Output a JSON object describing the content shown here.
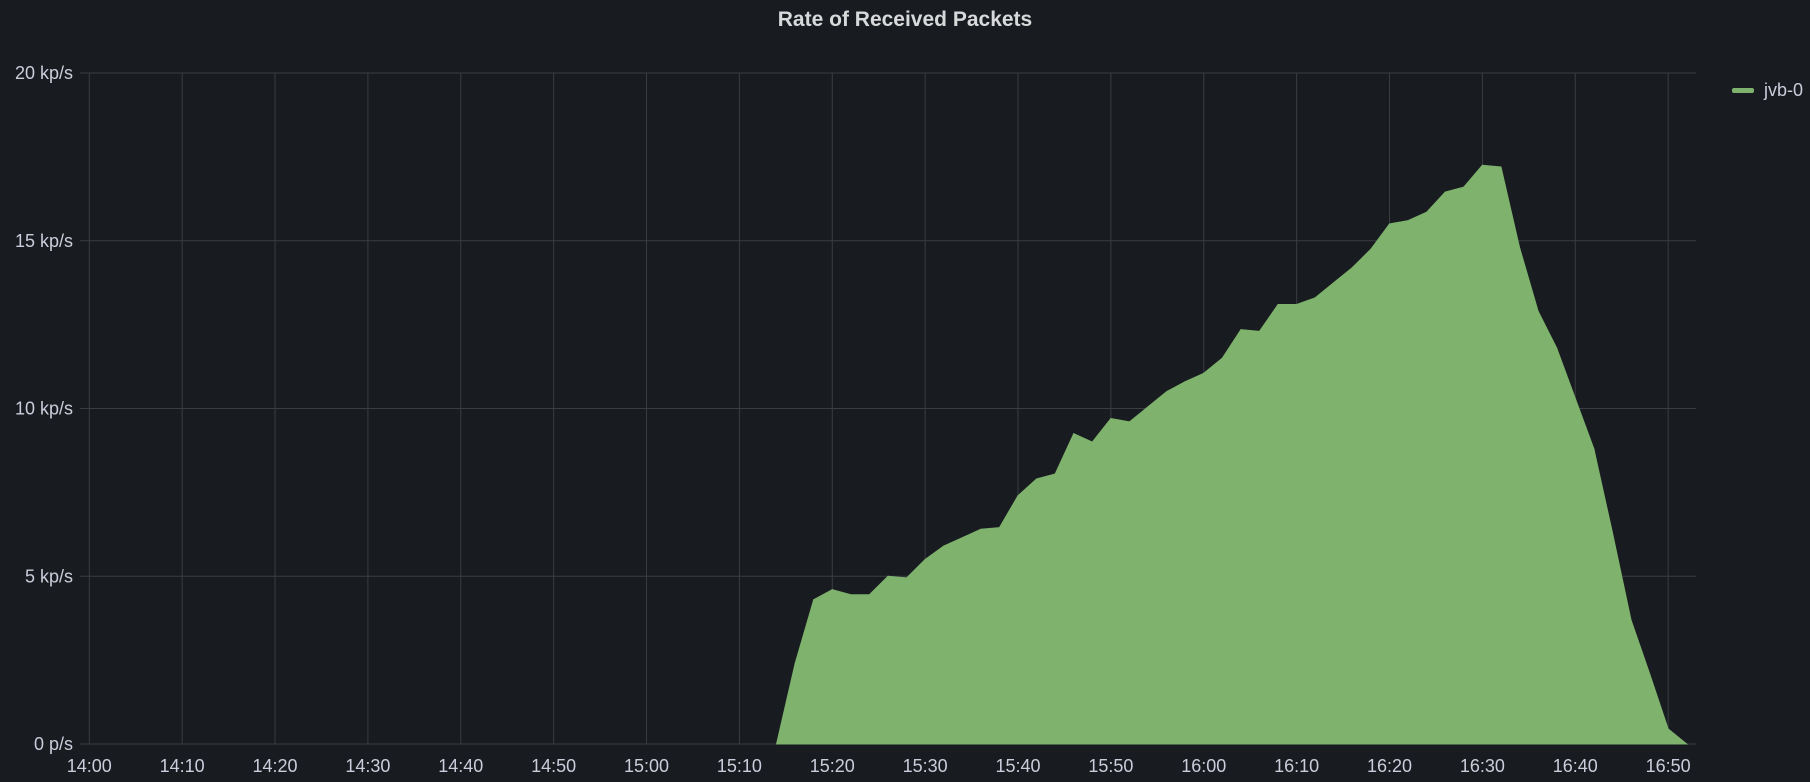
{
  "panel": {
    "title": "Rate of Received Packets"
  },
  "colors": {
    "background": "#181b1f",
    "series_fill": "#7eb26d",
    "grid": "#3a3d42",
    "text": "#ccccdc"
  },
  "chart_data": {
    "type": "area",
    "title": "Rate of Received Packets",
    "xlabel": "",
    "ylabel": "",
    "grid": true,
    "legend_position": "top-right",
    "x_ticks": [
      "14:00",
      "14:10",
      "14:20",
      "14:30",
      "14:40",
      "14:50",
      "15:00",
      "15:10",
      "15:20",
      "15:30",
      "15:40",
      "15:50",
      "16:00",
      "16:10",
      "16:20",
      "16:30",
      "16:40",
      "16:50"
    ],
    "y_ticks": [
      {
        "value": 0,
        "label": "0 p/s"
      },
      {
        "value": 5000,
        "label": "5 kp/s"
      },
      {
        "value": 10000,
        "label": "10 kp/s"
      },
      {
        "value": 15000,
        "label": "15 kp/s"
      },
      {
        "value": 20000,
        "label": "20 kp/s"
      }
    ],
    "x_range": [
      "13:59",
      "16:53"
    ],
    "ylim": [
      0,
      20000
    ],
    "series": [
      {
        "name": "jvb-0",
        "color": "#7eb26d",
        "points": [
          [
            "15:14",
            0
          ],
          [
            "15:16",
            2400
          ],
          [
            "15:18",
            4300
          ],
          [
            "15:20",
            4600
          ],
          [
            "15:22",
            4450
          ],
          [
            "15:24",
            4450
          ],
          [
            "15:26",
            5000
          ],
          [
            "15:28",
            4950
          ],
          [
            "15:30",
            5500
          ],
          [
            "15:32",
            5900
          ],
          [
            "15:34",
            6150
          ],
          [
            "15:36",
            6400
          ],
          [
            "15:38",
            6450
          ],
          [
            "15:40",
            7400
          ],
          [
            "15:42",
            7900
          ],
          [
            "15:44",
            8050
          ],
          [
            "15:46",
            9250
          ],
          [
            "15:48",
            9000
          ],
          [
            "15:50",
            9700
          ],
          [
            "15:52",
            9600
          ],
          [
            "15:54",
            10050
          ],
          [
            "15:56",
            10500
          ],
          [
            "15:58",
            10800
          ],
          [
            "16:00",
            11050
          ],
          [
            "16:02",
            11500
          ],
          [
            "16:04",
            12350
          ],
          [
            "16:06",
            12300
          ],
          [
            "16:08",
            13100
          ],
          [
            "16:10",
            13100
          ],
          [
            "16:12",
            13300
          ],
          [
            "16:14",
            13750
          ],
          [
            "16:16",
            14200
          ],
          [
            "16:18",
            14750
          ],
          [
            "16:20",
            15500
          ],
          [
            "16:22",
            15600
          ],
          [
            "16:24",
            15850
          ],
          [
            "16:26",
            16450
          ],
          [
            "16:28",
            16600
          ],
          [
            "16:30",
            17250
          ],
          [
            "16:32",
            17200
          ],
          [
            "16:34",
            14800
          ],
          [
            "16:36",
            12900
          ],
          [
            "16:38",
            11800
          ],
          [
            "16:40",
            10300
          ],
          [
            "16:42",
            8800
          ],
          [
            "16:44",
            6300
          ],
          [
            "16:46",
            3700
          ],
          [
            "16:48",
            2100
          ],
          [
            "16:50",
            450
          ],
          [
            "16:52",
            0
          ]
        ]
      }
    ]
  }
}
